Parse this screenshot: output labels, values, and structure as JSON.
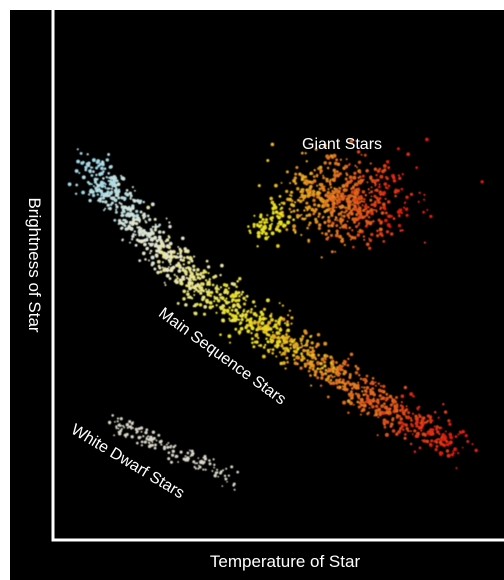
{
  "chart_data": {
    "type": "scatter",
    "title": "",
    "xlabel": "Temperature of Star",
    "ylabel": "Brightness of Star",
    "axis_ticks": false,
    "grid": false,
    "background": "#000000",
    "axis_color": "#ffffff",
    "annotations": [
      "Giant Stars",
      "Main Sequence Stars",
      "White Dwarf Stars"
    ],
    "groups": [
      {
        "label": "Main Sequence Stars",
        "description": "diagonal band from hot bright (blue-white) to cool dim (red)",
        "color_gradient": [
          "#9fd8e8",
          "#e8e6d0",
          "#e8e020",
          "#e07020",
          "#d81a10"
        ]
      },
      {
        "label": "Giant Stars",
        "description": "cluster of bright cool stars",
        "color_gradient": [
          "#e8e020",
          "#e07a20",
          "#d81a10"
        ]
      },
      {
        "label": "White Dwarf Stars",
        "description": "faint hot stars, small band",
        "color_gradient": [
          "#d8d6c8"
        ]
      }
    ]
  }
}
